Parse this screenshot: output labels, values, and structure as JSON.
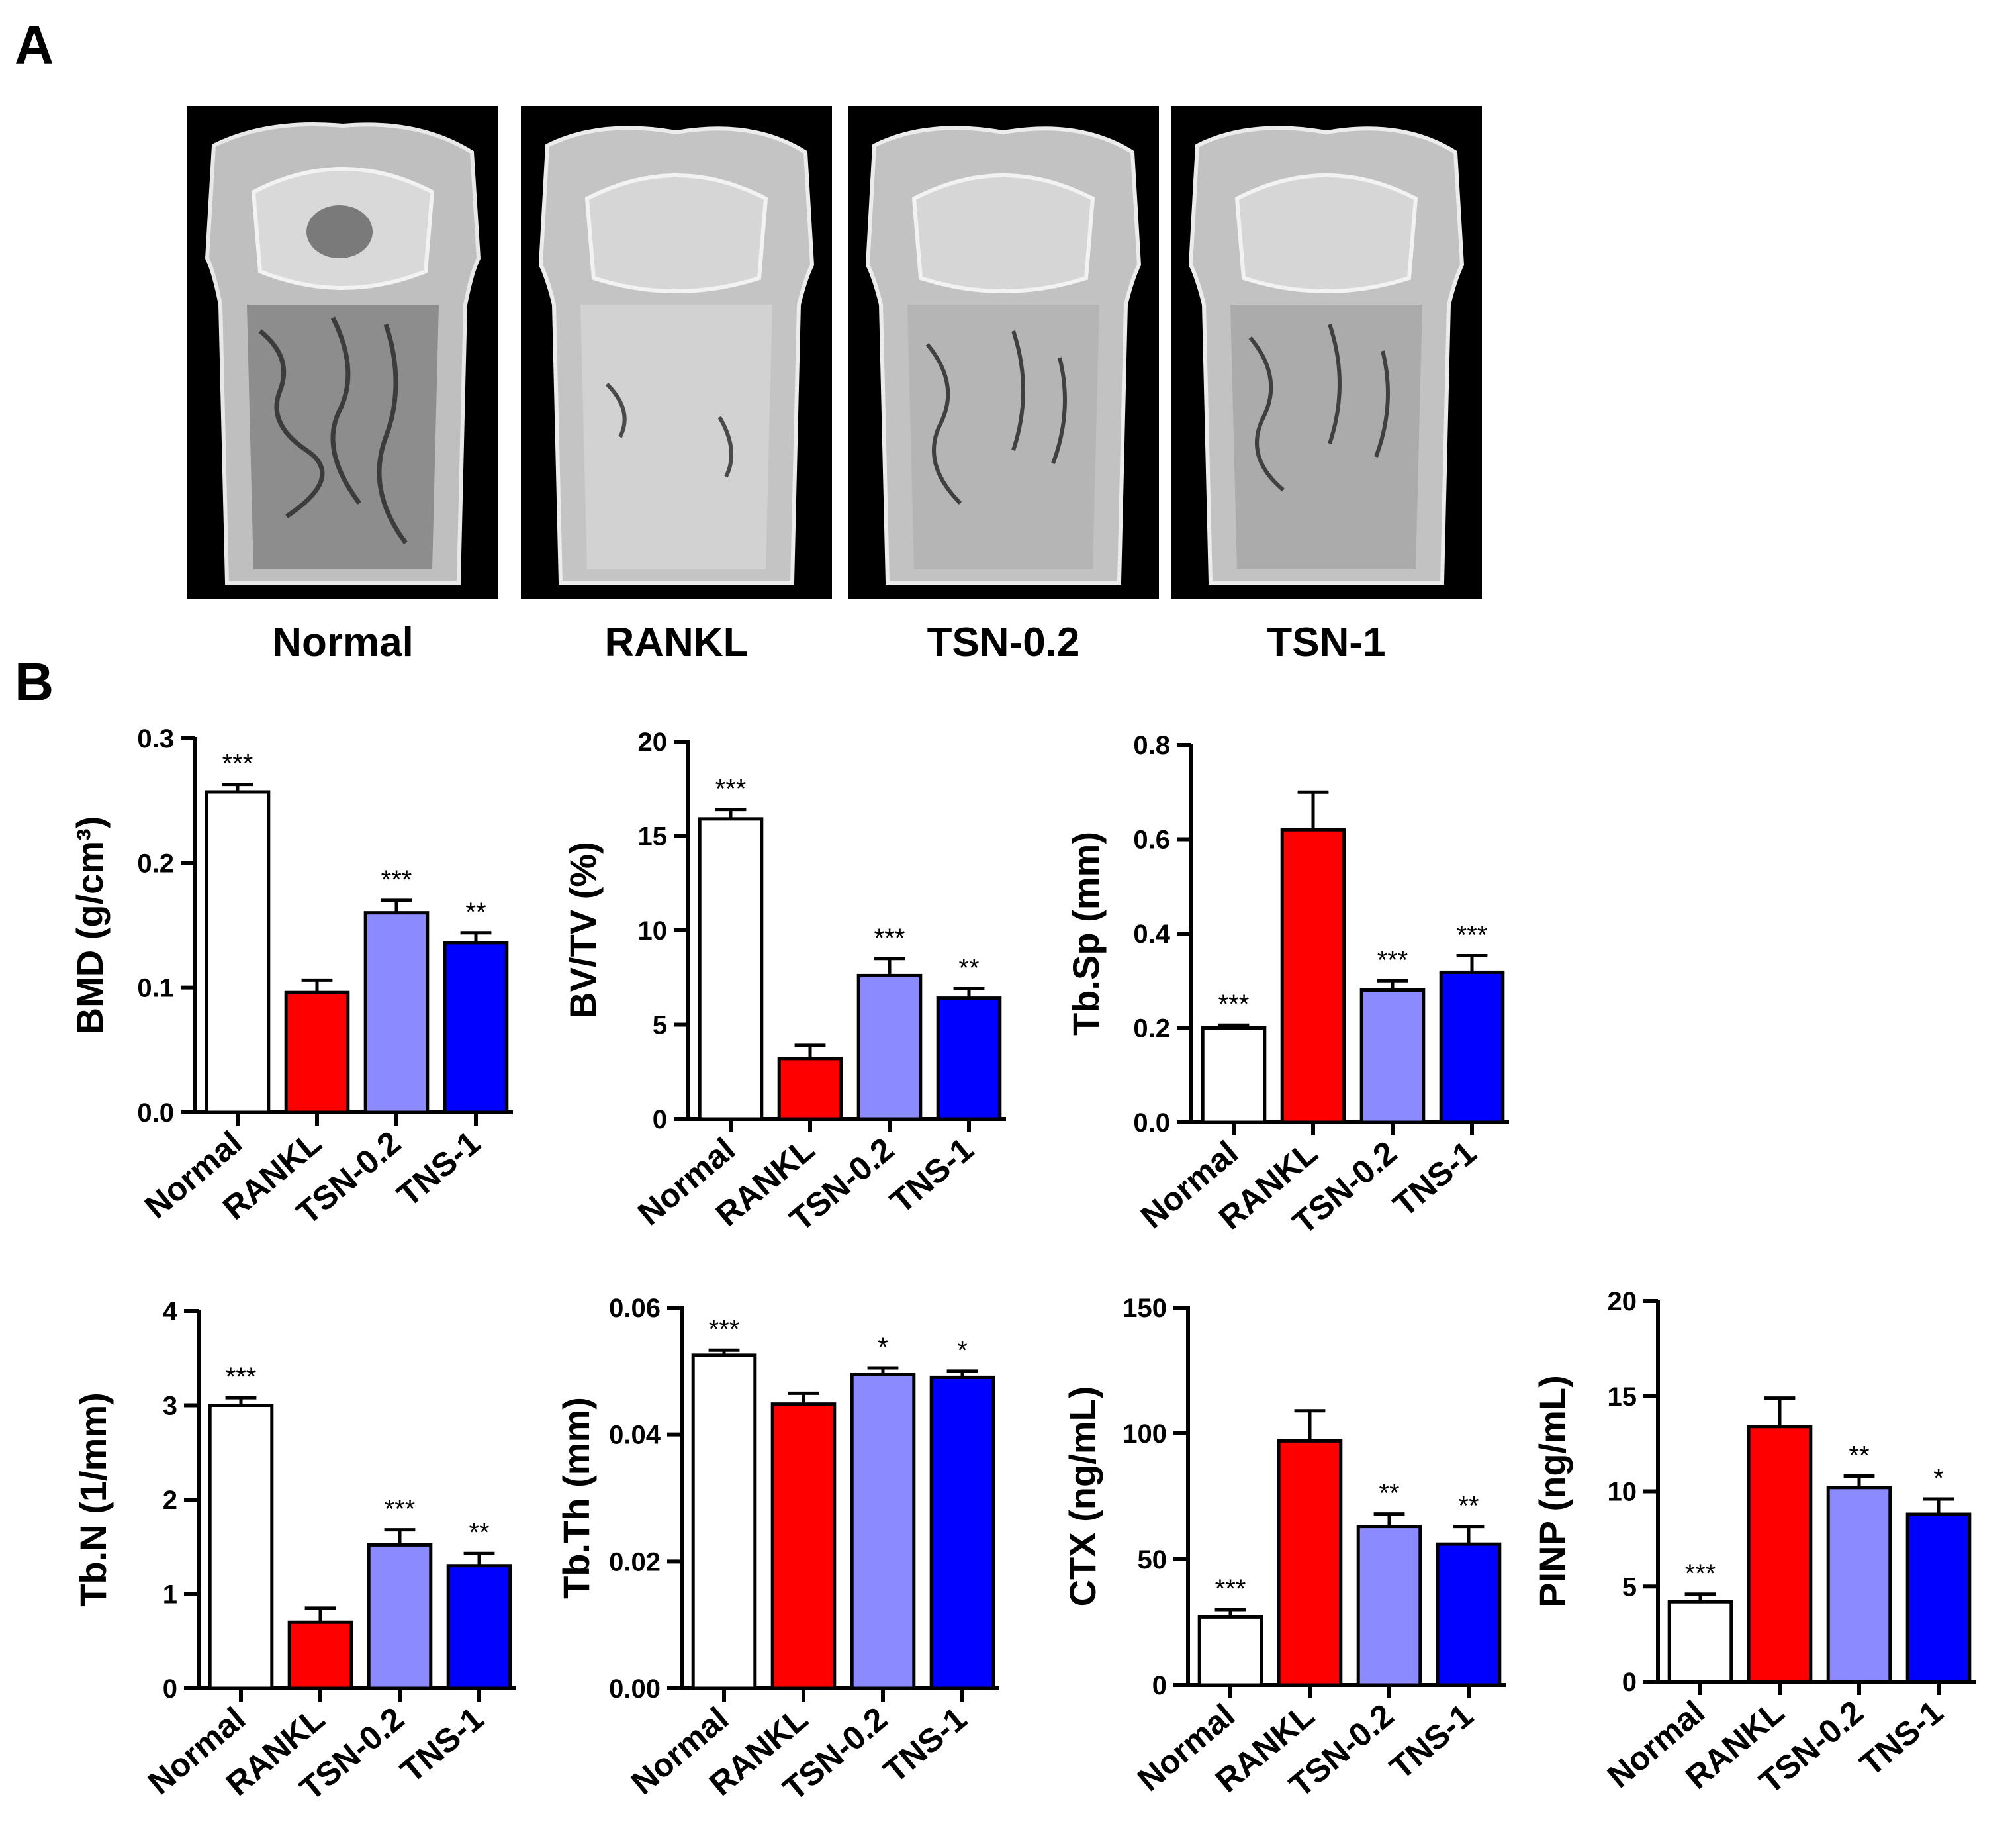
{
  "panels": {
    "a": "A",
    "b": "B"
  },
  "groups": [
    "Normal",
    "RANKL",
    "TSN-0.2",
    "TSN-1"
  ],
  "colors": {
    "normal": "#ffffff",
    "rankl": "#ff0000",
    "tsn02": "#8b8bff",
    "tsn1": "#0000ff",
    "axis": "#000000"
  },
  "chart_data": [
    {
      "type": "bar",
      "ylabel": "BMD (g/cm³)",
      "ylim": [
        0,
        0.3
      ],
      "yticks": [
        "0.0",
        "0.1",
        "0.2",
        "0.3"
      ],
      "categories": [
        "Normal",
        "RANKL",
        "TSN-0.2",
        "TNS-1"
      ],
      "values": [
        0.257,
        0.096,
        0.16,
        0.136
      ],
      "errors": [
        0.006,
        0.01,
        0.01,
        0.008
      ],
      "significance": [
        "***",
        "",
        "***",
        "**"
      ]
    },
    {
      "type": "bar",
      "ylabel": "BV/TV (%)",
      "ylim": [
        0,
        20
      ],
      "yticks": [
        "0",
        "5",
        "10",
        "15",
        "20"
      ],
      "categories": [
        "Normal",
        "RANKL",
        "TSN-0.2",
        "TNS-1"
      ],
      "values": [
        15.9,
        3.2,
        7.6,
        6.4
      ],
      "errors": [
        0.5,
        0.7,
        0.9,
        0.5
      ],
      "significance": [
        "***",
        "",
        "***",
        "**"
      ]
    },
    {
      "type": "bar",
      "ylabel": "Tb.Sp (mm)",
      "ylim": [
        0,
        0.8
      ],
      "yticks": [
        "0.0",
        "0.2",
        "0.4",
        "0.6",
        "0.8"
      ],
      "categories": [
        "Normal",
        "RANKL",
        "TSN-0.2",
        "TNS-1"
      ],
      "values": [
        0.2,
        0.62,
        0.28,
        0.318
      ],
      "errors": [
        0.006,
        0.08,
        0.02,
        0.035
      ],
      "significance": [
        "***",
        "",
        "***",
        "***"
      ]
    },
    {
      "type": "bar",
      "ylabel": "Tb.N (1/mm)",
      "ylim": [
        0,
        4
      ],
      "yticks": [
        "0",
        "1",
        "2",
        "3",
        "4"
      ],
      "categories": [
        "Normal",
        "RANKL",
        "TSN-0.2",
        "TNS-1"
      ],
      "values": [
        3.0,
        0.7,
        1.52,
        1.3
      ],
      "errors": [
        0.08,
        0.15,
        0.16,
        0.13
      ],
      "significance": [
        "***",
        "",
        "***",
        "**"
      ]
    },
    {
      "type": "bar",
      "ylabel": "Tb.Th (mm)",
      "ylim": [
        0,
        0.06
      ],
      "yticks": [
        "0.00",
        "0.02",
        "0.04",
        "0.06"
      ],
      "categories": [
        "Normal",
        "RANKL",
        "TSN-0.2",
        "TNS-1"
      ],
      "values": [
        0.0525,
        0.0448,
        0.0495,
        0.049
      ],
      "errors": [
        0.0008,
        0.0017,
        0.001,
        0.001
      ],
      "significance": [
        "***",
        "",
        "*",
        "*"
      ]
    },
    {
      "type": "bar",
      "ylabel": "CTX (ng/mL)",
      "ylim": [
        0,
        150
      ],
      "yticks": [
        "0",
        "50",
        "100",
        "150"
      ],
      "categories": [
        "Normal",
        "RANKL",
        "TSN-0.2",
        "TNS-1"
      ],
      "values": [
        27,
        97,
        63,
        56
      ],
      "errors": [
        3,
        12,
        5,
        7
      ],
      "significance": [
        "***",
        "",
        "**",
        "**"
      ]
    },
    {
      "type": "bar",
      "ylabel": "PINP (ng/mL)",
      "ylim": [
        0,
        20
      ],
      "yticks": [
        "0",
        "5",
        "10",
        "15",
        "20"
      ],
      "categories": [
        "Normal",
        "RANKL",
        "TSN-0.2",
        "TNS-1"
      ],
      "values": [
        4.2,
        13.4,
        10.2,
        8.8
      ],
      "errors": [
        0.4,
        1.5,
        0.6,
        0.8
      ],
      "significance": [
        "***",
        "",
        "**",
        "*"
      ]
    }
  ]
}
